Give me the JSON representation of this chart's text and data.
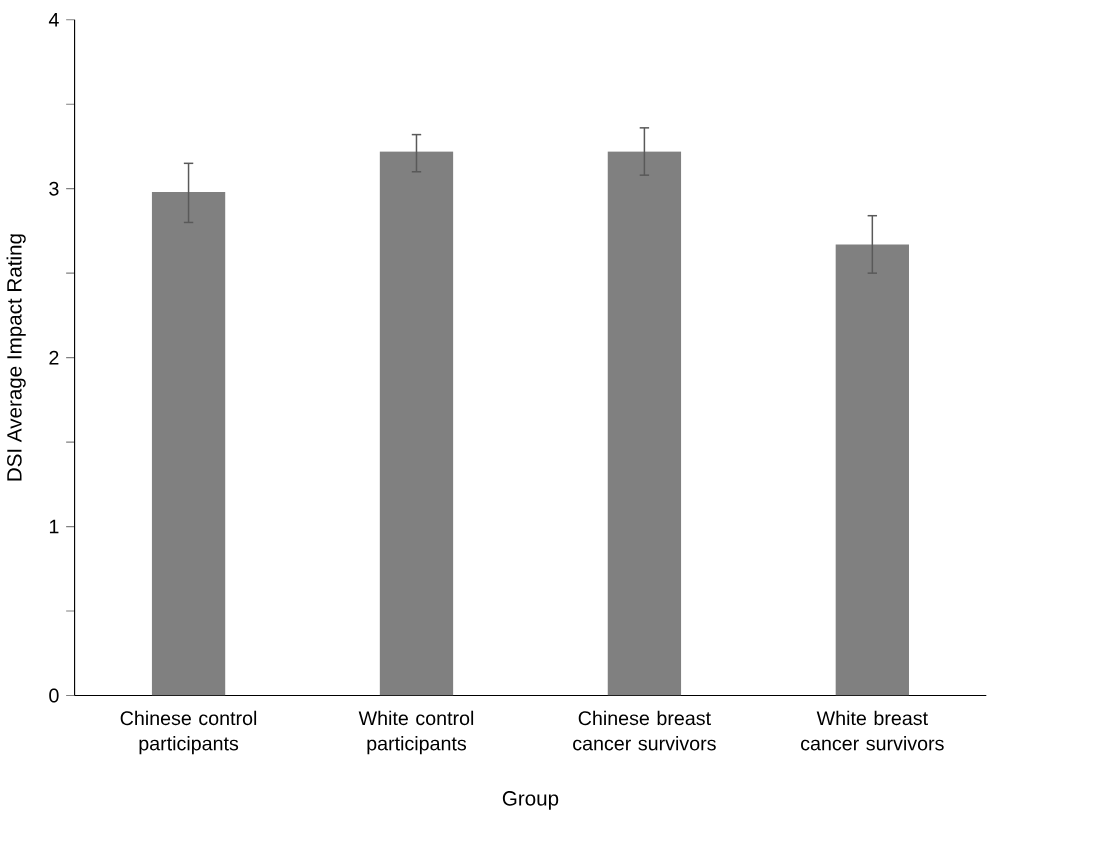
{
  "chart_data": {
    "type": "bar",
    "xlabel": "Group",
    "ylabel": "DSI Average Impact Rating",
    "categories": [
      "Chinese control participants",
      "White control participants",
      "Chinese breast cancer survivors",
      "White breast cancer survivors"
    ],
    "values": [
      2.98,
      3.22,
      3.22,
      2.67
    ],
    "errors": [
      [
        2.8,
        3.15
      ],
      [
        3.1,
        3.32
      ],
      [
        3.08,
        3.36
      ],
      [
        2.5,
        2.84
      ]
    ],
    "color": "#808080",
    "ylim": [
      0,
      4
    ],
    "yticks": [
      0,
      {
        "value": 0.5,
        "label": null
      },
      1,
      {
        "value": 1.5,
        "label": null
      },
      2,
      {
        "value": 2.5,
        "label": null
      },
      3,
      {
        "value": 3.5,
        "label": null
      },
      4
    ],
    "grid": false
  }
}
